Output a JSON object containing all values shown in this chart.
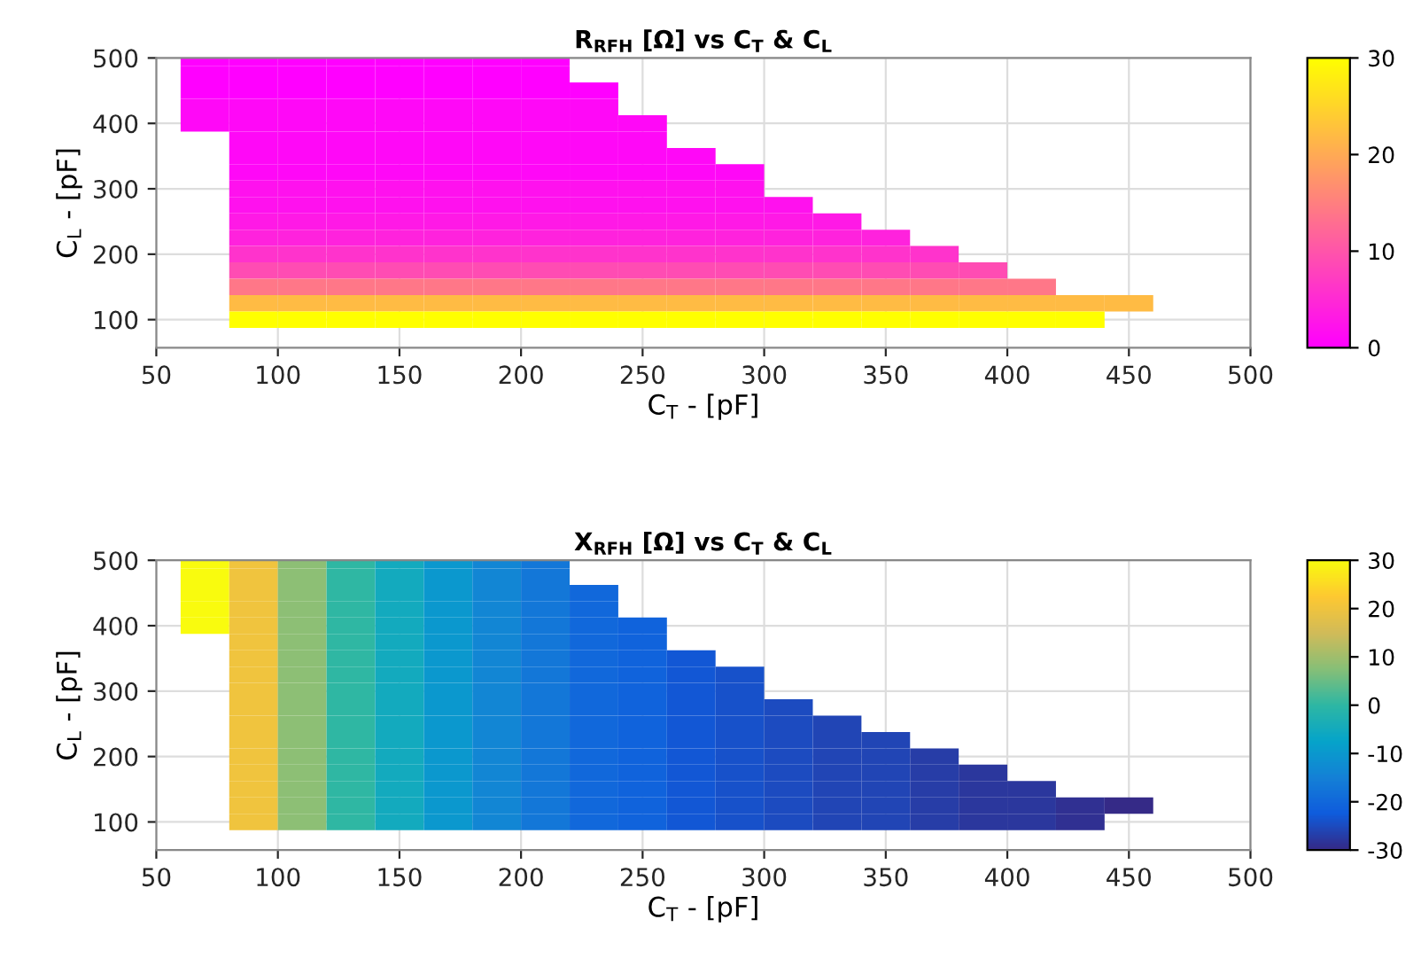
{
  "chart_data": [
    {
      "type": "heatmap",
      "title": "R$_{RFH}$ [Ω] vs C$_{T}$ & C$_{L}$",
      "xlabel": "C$_{T}$ - [pF]",
      "ylabel": "C$_{L}$ - [pF]",
      "x": [
        70,
        90,
        110,
        130,
        150,
        170,
        190,
        210,
        230,
        250,
        270,
        290,
        310,
        330,
        350,
        370,
        390,
        410,
        430,
        450
      ],
      "y": [
        500,
        475,
        450,
        425,
        400,
        375,
        350,
        325,
        300,
        275,
        250,
        225,
        200,
        175,
        150,
        125,
        100
      ],
      "cells": [
        [
          0,
          0,
          0,
          0,
          0,
          0,
          0,
          0,
          null,
          null,
          null,
          null,
          null,
          null,
          null,
          null,
          null,
          null,
          null,
          null
        ],
        [
          0,
          0,
          0,
          0,
          0,
          0,
          0,
          0,
          null,
          null,
          null,
          null,
          null,
          null,
          null,
          null,
          null,
          null,
          null,
          null
        ],
        [
          0,
          0,
          0,
          0,
          0,
          0,
          0,
          0,
          0,
          null,
          null,
          null,
          null,
          null,
          null,
          null,
          null,
          null,
          null,
          null
        ],
        [
          1,
          1,
          1,
          1,
          1,
          1,
          1,
          1,
          1,
          null,
          null,
          null,
          null,
          null,
          null,
          null,
          null,
          null,
          null,
          null
        ],
        [
          1,
          1,
          1,
          1,
          1,
          1,
          1,
          1,
          1,
          1,
          null,
          null,
          null,
          null,
          null,
          null,
          null,
          null,
          null,
          null
        ],
        [
          null,
          1,
          1,
          1,
          1,
          1,
          1,
          1,
          1,
          1,
          null,
          null,
          null,
          null,
          null,
          null,
          null,
          null,
          null,
          null
        ],
        [
          null,
          1,
          1,
          1,
          1,
          1,
          1,
          1,
          1,
          1,
          1,
          null,
          null,
          null,
          null,
          null,
          null,
          null,
          null,
          null
        ],
        [
          null,
          1,
          1,
          1,
          1,
          1,
          1,
          1,
          1,
          1,
          1,
          1,
          null,
          null,
          null,
          null,
          null,
          null,
          null,
          null
        ],
        [
          null,
          2,
          2,
          2,
          2,
          2,
          2,
          2,
          2,
          2,
          2,
          2,
          null,
          null,
          null,
          null,
          null,
          null,
          null,
          null
        ],
        [
          null,
          2,
          2,
          2,
          2,
          2,
          2,
          2,
          2,
          2,
          2,
          2,
          2,
          null,
          null,
          null,
          null,
          null,
          null,
          null
        ],
        [
          null,
          3,
          3,
          3,
          3,
          3,
          3,
          3,
          3,
          3,
          3,
          3,
          3,
          3,
          null,
          null,
          null,
          null,
          null,
          null
        ],
        [
          null,
          4,
          4,
          4,
          4,
          4,
          4,
          4,
          4,
          4,
          4,
          4,
          4,
          4,
          4,
          null,
          null,
          null,
          null,
          null
        ],
        [
          null,
          6,
          6,
          6,
          6,
          6,
          6,
          6,
          6,
          6,
          6,
          6,
          6,
          6,
          6,
          6,
          null,
          null,
          null,
          null
        ],
        [
          null,
          9,
          9,
          9,
          9,
          9,
          9,
          9,
          9,
          9,
          9,
          9,
          9,
          9,
          9,
          9,
          9,
          null,
          null,
          null
        ],
        [
          null,
          14,
          14,
          14,
          14,
          14,
          14,
          14,
          14,
          14,
          14,
          14,
          14,
          14,
          14,
          14,
          14,
          14,
          null,
          null
        ],
        [
          null,
          22,
          22,
          22,
          22,
          22,
          22,
          22,
          22,
          22,
          22,
          22,
          22,
          22,
          22,
          22,
          22,
          22,
          22,
          22
        ],
        [
          null,
          30,
          30,
          30,
          30,
          30,
          30,
          30,
          30,
          30,
          30,
          30,
          30,
          30,
          30,
          30,
          30,
          30,
          30,
          null
        ]
      ],
      "colors": [
        "#ff00ff",
        "#ffff00"
      ],
      "xlim": [
        50,
        500
      ],
      "xticks": [
        50,
        100,
        150,
        200,
        250,
        300,
        350,
        400,
        450,
        500
      ],
      "ylim": [
        57,
        500
      ],
      "yticks": [
        100,
        200,
        300,
        400,
        500
      ],
      "clim": [
        0,
        30
      ],
      "cticks": [
        0,
        10,
        20,
        30
      ],
      "grid": true
    },
    {
      "type": "heatmap",
      "title": "X$_{RFH}$ [Ω] vs C$_{T}$ & C$_{L}$",
      "xlabel": "C$_{T}$ - [pF]",
      "ylabel": "C$_{L}$ - [pF]",
      "x": [
        70,
        90,
        110,
        130,
        150,
        170,
        190,
        210,
        230,
        250,
        270,
        290,
        310,
        330,
        350,
        370,
        390,
        410,
        430,
        450
      ],
      "y": [
        500,
        475,
        450,
        425,
        400,
        375,
        350,
        325,
        300,
        275,
        250,
        225,
        200,
        175,
        150,
        125,
        100
      ],
      "cells": [
        [
          30,
          20,
          8,
          0,
          -5,
          -10,
          -14,
          -17,
          null,
          null,
          null,
          null,
          null,
          null,
          null,
          null,
          null,
          null,
          null,
          null
        ],
        [
          30,
          20,
          8,
          0,
          -5,
          -10,
          -14,
          -17,
          null,
          null,
          null,
          null,
          null,
          null,
          null,
          null,
          null,
          null,
          null,
          null
        ],
        [
          30,
          20,
          8,
          0,
          -5,
          -10,
          -14,
          -17,
          -20,
          null,
          null,
          null,
          null,
          null,
          null,
          null,
          null,
          null,
          null,
          null
        ],
        [
          30,
          20,
          8,
          0,
          -5,
          -10,
          -14,
          -17,
          -20,
          null,
          null,
          null,
          null,
          null,
          null,
          null,
          null,
          null,
          null,
          null
        ],
        [
          30,
          20,
          8,
          0,
          -5,
          -10,
          -14,
          -17,
          -20,
          -21,
          null,
          null,
          null,
          null,
          null,
          null,
          null,
          null,
          null,
          null
        ],
        [
          null,
          20,
          8,
          0,
          -5,
          -10,
          -14,
          -17,
          -20,
          -21,
          null,
          null,
          null,
          null,
          null,
          null,
          null,
          null,
          null,
          null
        ],
        [
          null,
          20,
          8,
          0,
          -5,
          -10,
          -14,
          -17,
          -20,
          -21,
          -23,
          null,
          null,
          null,
          null,
          null,
          null,
          null,
          null,
          null
        ],
        [
          null,
          20,
          8,
          0,
          -5,
          -10,
          -14,
          -17,
          -20,
          -21,
          -23,
          -24,
          null,
          null,
          null,
          null,
          null,
          null,
          null,
          null
        ],
        [
          null,
          20,
          8,
          0,
          -5,
          -10,
          -14,
          -17,
          -20,
          -21,
          -23,
          -24,
          null,
          null,
          null,
          null,
          null,
          null,
          null,
          null
        ],
        [
          null,
          20,
          8,
          0,
          -5,
          -10,
          -14,
          -17,
          -20,
          -21,
          -23,
          -24,
          -25,
          null,
          null,
          null,
          null,
          null,
          null,
          null
        ],
        [
          null,
          20,
          8,
          0,
          -5,
          -10,
          -14,
          -17,
          -20,
          -21,
          -23,
          -24,
          -25,
          -26,
          null,
          null,
          null,
          null,
          null,
          null
        ],
        [
          null,
          20,
          8,
          0,
          -5,
          -10,
          -14,
          -17,
          -20,
          -21,
          -23,
          -24,
          -25,
          -26,
          -26,
          null,
          null,
          null,
          null,
          null
        ],
        [
          null,
          20,
          8,
          0,
          -5,
          -10,
          -14,
          -17,
          -20,
          -21,
          -23,
          -24,
          -25,
          -26,
          -26,
          -27,
          null,
          null,
          null,
          null
        ],
        [
          null,
          20,
          8,
          0,
          -5,
          -10,
          -14,
          -17,
          -20,
          -21,
          -23,
          -24,
          -25,
          -26,
          -26,
          -27,
          -28,
          null,
          null,
          null
        ],
        [
          null,
          20,
          8,
          0,
          -5,
          -10,
          -14,
          -17,
          -20,
          -21,
          -23,
          -24,
          -25,
          -26,
          -26,
          -27,
          -28,
          -28,
          null,
          null
        ],
        [
          null,
          20,
          8,
          0,
          -5,
          -10,
          -14,
          -17,
          -20,
          -21,
          -23,
          -24,
          -25,
          -26,
          -26,
          -27,
          -28,
          -28,
          -29,
          -30
        ],
        [
          null,
          20,
          8,
          0,
          -5,
          -10,
          -14,
          -17,
          -20,
          -21,
          -23,
          -24,
          -25,
          -26,
          -26,
          -27,
          -28,
          -28,
          -29,
          null
        ]
      ],
      "colors": [
        "#352a87",
        "#0f5cdd",
        "#1481d6",
        "#06a4ca",
        "#2eb7a4",
        "#87bf77",
        "#d1bb59",
        "#fec832",
        "#f9fb0e"
      ],
      "xlim": [
        50,
        500
      ],
      "xticks": [
        50,
        100,
        150,
        200,
        250,
        300,
        350,
        400,
        450,
        500
      ],
      "ylim": [
        57,
        500
      ],
      "yticks": [
        100,
        200,
        300,
        400,
        500
      ],
      "clim": [
        -30,
        30
      ],
      "cticks": [
        -30,
        -20,
        -10,
        0,
        10,
        20,
        30
      ],
      "grid": true
    }
  ]
}
